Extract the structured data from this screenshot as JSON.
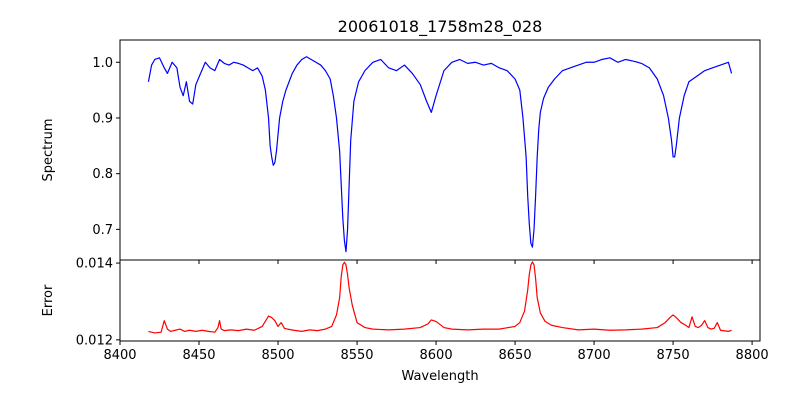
{
  "chart_data": [
    {
      "type": "line",
      "title": "20061018_1758m28_028",
      "xlabel": "",
      "ylabel": "Spectrum",
      "xlim": [
        8400,
        8805
      ],
      "ylim": [
        0.645,
        1.04
      ],
      "xticks": [
        8400,
        8450,
        8500,
        8550,
        8600,
        8650,
        8700,
        8750,
        8800
      ],
      "yticks": [
        0.7,
        0.8,
        0.9,
        1.0
      ],
      "ytick_labels": [
        "0.7",
        "0.8",
        "0.9",
        "1.0"
      ],
      "show_xtick_labels": false,
      "grid": false,
      "color": "#0000ff",
      "series": [
        {
          "x": [
            8418,
            8420,
            8422,
            8425,
            8428,
            8430,
            8433,
            8436,
            8438,
            8440,
            8442,
            8444,
            8446,
            8448,
            8451,
            8454,
            8457,
            8460,
            8463,
            8466,
            8469,
            8472,
            8475,
            8478,
            8481,
            8484,
            8487,
            8490,
            8492,
            8494,
            8495,
            8496,
            8497,
            8498,
            8499,
            8500,
            8501,
            8503,
            8505,
            8507,
            8509,
            8512,
            8515,
            8518,
            8521,
            8524,
            8527,
            8530,
            8533,
            8535,
            8537,
            8539,
            8540,
            8541,
            8542,
            8543,
            8544,
            8545,
            8546,
            8548,
            8551,
            8555,
            8560,
            8565,
            8570,
            8575,
            8580,
            8585,
            8590,
            8594,
            8597,
            8600,
            8605,
            8610,
            8615,
            8620,
            8625,
            8630,
            8635,
            8640,
            8645,
            8650,
            8653,
            8655,
            8657,
            8658,
            8659,
            8660,
            8661,
            8662,
            8663,
            8664,
            8665,
            8666,
            8668,
            8671,
            8675,
            8680,
            8685,
            8690,
            8695,
            8700,
            8705,
            8710,
            8715,
            8720,
            8725,
            8730,
            8735,
            8740,
            8744,
            8747,
            8749,
            8750,
            8751,
            8752,
            8754,
            8757,
            8760,
            8765,
            8770,
            8775,
            8780,
            8785,
            8787
          ],
          "y": [
            0.965,
            0.995,
            1.005,
            1.008,
            0.99,
            0.98,
            1.0,
            0.99,
            0.955,
            0.94,
            0.965,
            0.93,
            0.925,
            0.96,
            0.98,
            1.0,
            0.99,
            0.985,
            1.005,
            0.998,
            0.995,
            1.0,
            0.998,
            0.995,
            0.99,
            0.985,
            0.99,
            0.975,
            0.95,
            0.9,
            0.85,
            0.83,
            0.815,
            0.82,
            0.84,
            0.87,
            0.9,
            0.93,
            0.95,
            0.965,
            0.98,
            0.995,
            1.005,
            1.01,
            1.005,
            1.0,
            0.995,
            0.985,
            0.97,
            0.94,
            0.9,
            0.84,
            0.78,
            0.72,
            0.68,
            0.66,
            0.7,
            0.78,
            0.86,
            0.93,
            0.965,
            0.985,
            1.0,
            1.005,
            0.99,
            0.985,
            0.995,
            0.98,
            0.96,
            0.93,
            0.91,
            0.94,
            0.985,
            1.0,
            1.005,
            0.998,
            1.0,
            0.995,
            0.998,
            0.99,
            0.985,
            0.97,
            0.95,
            0.9,
            0.83,
            0.76,
            0.71,
            0.675,
            0.668,
            0.7,
            0.76,
            0.83,
            0.88,
            0.91,
            0.935,
            0.955,
            0.97,
            0.985,
            0.99,
            0.995,
            1.0,
            1.0,
            1.005,
            1.008,
            1.0,
            1.005,
            1.002,
            0.998,
            0.99,
            0.97,
            0.94,
            0.9,
            0.86,
            0.83,
            0.83,
            0.85,
            0.9,
            0.94,
            0.965,
            0.975,
            0.985,
            0.99,
            0.995,
            1.0,
            0.98
          ]
        }
      ]
    },
    {
      "type": "line",
      "title": "",
      "xlabel": "Wavelength",
      "ylabel": "Error",
      "xlim": [
        8400,
        8805
      ],
      "ylim": [
        0.01197,
        0.01408
      ],
      "xticks": [
        8400,
        8450,
        8500,
        8550,
        8600,
        8650,
        8700,
        8750,
        8800
      ],
      "xtick_labels": [
        "8400",
        "8450",
        "8500",
        "8550",
        "8600",
        "8650",
        "8700",
        "8750",
        "8800"
      ],
      "yticks": [
        0.012,
        0.014
      ],
      "ytick_labels": [
        "0.012",
        "0.014"
      ],
      "show_xtick_labels": true,
      "grid": false,
      "color": "#ff0000",
      "series": [
        {
          "x": [
            8418,
            8422,
            8426,
            8428,
            8430,
            8432,
            8435,
            8438,
            8441,
            8444,
            8448,
            8452,
            8456,
            8460,
            8462,
            8463,
            8464,
            8466,
            8470,
            8475,
            8480,
            8485,
            8490,
            8494,
            8496,
            8498,
            8500,
            8502,
            8504,
            8506,
            8510,
            8515,
            8520,
            8525,
            8530,
            8534,
            8537,
            8539,
            8540,
            8541,
            8542,
            8543,
            8544,
            8545,
            8547,
            8550,
            8555,
            8560,
            8570,
            8580,
            8590,
            8595,
            8597,
            8600,
            8605,
            8610,
            8620,
            8630,
            8640,
            8650,
            8653,
            8656,
            8658,
            8659,
            8660,
            8661,
            8662,
            8663,
            8664,
            8666,
            8669,
            8673,
            8680,
            8690,
            8700,
            8710,
            8720,
            8730,
            8740,
            8745,
            8748,
            8750,
            8752,
            8755,
            8758,
            8760,
            8762,
            8764,
            8766,
            8768,
            8770,
            8772,
            8774,
            8776,
            8778,
            8780,
            8785,
            8787
          ],
          "y": [
            0.01222,
            0.01218,
            0.0122,
            0.0125,
            0.01228,
            0.01222,
            0.01225,
            0.01228,
            0.01222,
            0.01225,
            0.01222,
            0.01225,
            0.01222,
            0.0122,
            0.01232,
            0.0125,
            0.01228,
            0.01224,
            0.01226,
            0.01224,
            0.01228,
            0.01225,
            0.01235,
            0.01262,
            0.01258,
            0.0125,
            0.01235,
            0.01245,
            0.0123,
            0.01228,
            0.01225,
            0.01222,
            0.01226,
            0.01224,
            0.01228,
            0.01235,
            0.01265,
            0.0131,
            0.01365,
            0.01395,
            0.01402,
            0.01395,
            0.0137,
            0.01335,
            0.0129,
            0.01245,
            0.01232,
            0.01228,
            0.01226,
            0.01228,
            0.01232,
            0.01242,
            0.01252,
            0.01248,
            0.01232,
            0.01228,
            0.01226,
            0.01228,
            0.01228,
            0.01235,
            0.01245,
            0.01275,
            0.0133,
            0.0137,
            0.01395,
            0.01403,
            0.01395,
            0.0136,
            0.0131,
            0.0127,
            0.01248,
            0.01238,
            0.01232,
            0.01226,
            0.01228,
            0.01225,
            0.01226,
            0.01228,
            0.01232,
            0.01245,
            0.01258,
            0.01265,
            0.01258,
            0.01245,
            0.01238,
            0.01232,
            0.0126,
            0.01235,
            0.01232,
            0.01238,
            0.0125,
            0.01232,
            0.01228,
            0.0123,
            0.01245,
            0.01225,
            0.01222,
            0.01225
          ]
        }
      ]
    }
  ]
}
